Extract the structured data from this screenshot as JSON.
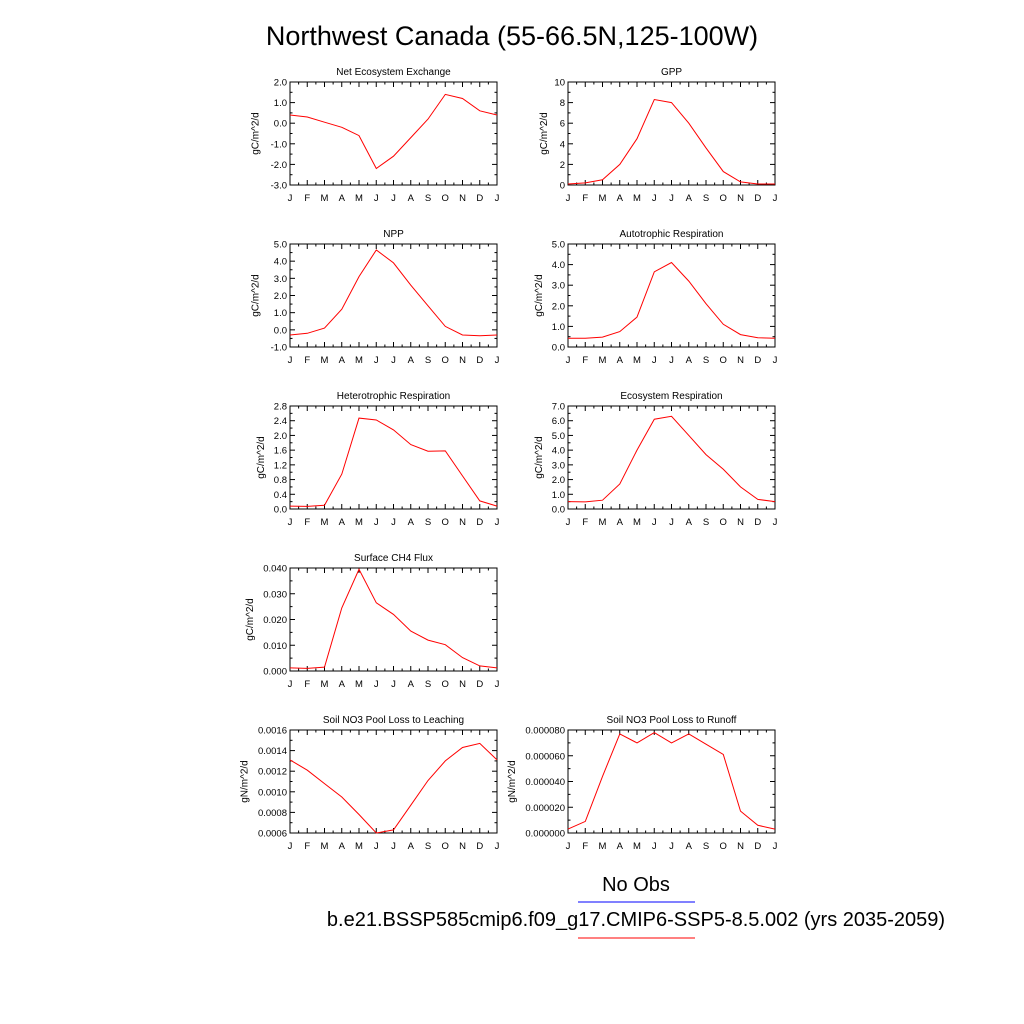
{
  "figure": {
    "title": "Northwest Canada (55-66.5N,125-100W)",
    "legend": {
      "entries": [
        {
          "label": "No Obs",
          "color": "#0000ff"
        },
        {
          "label": "b.e21.BSSP585cmip6.f09_g17.CMIP6-SSP5-8.5.002 (yrs 2035-2059)",
          "color": "#ff0000"
        }
      ]
    }
  },
  "chart_data": [
    {
      "type": "line",
      "title": "Net Ecosystem Exchange",
      "ylabel": "gC/m^2/d",
      "x": [
        "J",
        "F",
        "M",
        "A",
        "M",
        "J",
        "J",
        "A",
        "S",
        "O",
        "N",
        "D",
        "J"
      ],
      "ylim": [
        -3.0,
        2.0
      ],
      "yticks": [
        "-3.0",
        "-2.0",
        "-1.0",
        "0.0",
        "1.0",
        "2.0"
      ],
      "series": [
        {
          "color": "#ff0000",
          "values": [
            0.4,
            0.3,
            0.05,
            -0.2,
            -0.6,
            -2.2,
            -1.6,
            -0.7,
            0.2,
            1.4,
            1.2,
            0.6,
            0.4
          ]
        }
      ]
    },
    {
      "type": "line",
      "title": "GPP",
      "ylabel": "gC/m^2/d",
      "x": [
        "J",
        "F",
        "M",
        "A",
        "M",
        "J",
        "J",
        "A",
        "S",
        "O",
        "N",
        "D",
        "J"
      ],
      "ylim": [
        0,
        10
      ],
      "yticks": [
        "0",
        "2",
        "4",
        "6",
        "8",
        "10"
      ],
      "series": [
        {
          "color": "#ff0000",
          "values": [
            0.1,
            0.2,
            0.5,
            2.0,
            4.5,
            8.3,
            8.0,
            6.0,
            3.6,
            1.3,
            0.3,
            0.1,
            0.1
          ]
        }
      ]
    },
    {
      "type": "line",
      "title": "NPP",
      "ylabel": "gC/m^2/d",
      "x": [
        "J",
        "F",
        "M",
        "A",
        "M",
        "J",
        "J",
        "A",
        "S",
        "O",
        "N",
        "D",
        "J"
      ],
      "ylim": [
        -1.0,
        5.0
      ],
      "yticks": [
        "-1.0",
        "0.0",
        "1.0",
        "2.0",
        "3.0",
        "4.0",
        "5.0"
      ],
      "series": [
        {
          "color": "#ff0000",
          "values": [
            -0.3,
            -0.2,
            0.1,
            1.2,
            3.1,
            4.65,
            3.9,
            2.6,
            1.4,
            0.2,
            -0.3,
            -0.35,
            -0.3
          ]
        }
      ]
    },
    {
      "type": "line",
      "title": "Autotrophic Respiration",
      "ylabel": "gC/m^2/d",
      "x": [
        "J",
        "F",
        "M",
        "A",
        "M",
        "J",
        "J",
        "A",
        "S",
        "O",
        "N",
        "D",
        "J"
      ],
      "ylim": [
        0,
        5.0
      ],
      "yticks": [
        "0.0",
        "1.0",
        "2.0",
        "3.0",
        "4.0",
        "5.0"
      ],
      "series": [
        {
          "color": "#ff0000",
          "values": [
            0.42,
            0.42,
            0.48,
            0.75,
            1.45,
            3.65,
            4.1,
            3.2,
            2.1,
            1.1,
            0.6,
            0.45,
            0.42
          ]
        }
      ]
    },
    {
      "type": "line",
      "title": "Heterotrophic Respiration",
      "ylabel": "gC/m^2/d",
      "x": [
        "J",
        "F",
        "M",
        "A",
        "M",
        "J",
        "J",
        "A",
        "S",
        "O",
        "N",
        "D",
        "J"
      ],
      "ylim": [
        0,
        2.8
      ],
      "yticks": [
        "0.0",
        "0.4",
        "0.8",
        "1.2",
        "1.6",
        "2.0",
        "2.4",
        "2.8"
      ],
      "series": [
        {
          "color": "#ff0000",
          "values": [
            0.08,
            0.07,
            0.1,
            0.95,
            2.47,
            2.42,
            2.15,
            1.75,
            1.57,
            1.58,
            0.9,
            0.22,
            0.08
          ]
        }
      ]
    },
    {
      "type": "line",
      "title": "Ecosystem Respiration",
      "ylabel": "gC/m^2/d",
      "x": [
        "J",
        "F",
        "M",
        "A",
        "M",
        "J",
        "J",
        "A",
        "S",
        "O",
        "N",
        "D",
        "J"
      ],
      "ylim": [
        0,
        7.0
      ],
      "yticks": [
        "0.0",
        "1.0",
        "2.0",
        "3.0",
        "4.0",
        "5.0",
        "6.0",
        "7.0"
      ],
      "series": [
        {
          "color": "#ff0000",
          "values": [
            0.5,
            0.48,
            0.6,
            1.7,
            4.0,
            6.1,
            6.3,
            5.0,
            3.7,
            2.7,
            1.5,
            0.65,
            0.5
          ]
        }
      ]
    },
    {
      "type": "line",
      "title": "Surface CH4 Flux",
      "ylabel": "gC/m^2/d",
      "x": [
        "J",
        "F",
        "M",
        "A",
        "M",
        "J",
        "J",
        "A",
        "S",
        "O",
        "N",
        "D",
        "J"
      ],
      "ylim": [
        0,
        0.04
      ],
      "yticks": [
        "0.000",
        "0.010",
        "0.020",
        "0.030",
        "0.040"
      ],
      "series": [
        {
          "color": "#ff0000",
          "values": [
            0.0012,
            0.001,
            0.0015,
            0.0245,
            0.0395,
            0.0265,
            0.022,
            0.0155,
            0.012,
            0.0102,
            0.0052,
            0.002,
            0.0012
          ]
        }
      ]
    },
    {
      "type": "line",
      "title": "Soil NO3 Pool Loss to Leaching",
      "ylabel": "gN/m^2/d",
      "x": [
        "J",
        "F",
        "M",
        "A",
        "M",
        "J",
        "J",
        "A",
        "S",
        "O",
        "N",
        "D",
        "J"
      ],
      "ylim": [
        0.0006,
        0.0016
      ],
      "yticks": [
        "0.0006",
        "0.0008",
        "0.0010",
        "0.0012",
        "0.0014",
        "0.0016"
      ],
      "series": [
        {
          "color": "#ff0000",
          "values": [
            0.00131,
            0.00121,
            0.00108,
            0.00095,
            0.00078,
            0.0006,
            0.00063,
            0.00087,
            0.00111,
            0.0013,
            0.00143,
            0.00147,
            0.00131
          ]
        }
      ]
    },
    {
      "type": "line",
      "title": "Soil NO3 Pool Loss to Runoff",
      "ylabel": "gN/m^2/d",
      "x": [
        "J",
        "F",
        "M",
        "A",
        "M",
        "J",
        "J",
        "A",
        "S",
        "O",
        "N",
        "D",
        "J"
      ],
      "ylim": [
        0,
        8e-05
      ],
      "yticks": [
        "0.000000",
        "0.000020",
        "0.000040",
        "0.000060",
        "0.000080"
      ],
      "series": [
        {
          "color": "#ff0000",
          "values": [
            3e-06,
            9e-06,
            4.4e-05,
            7.7e-05,
            7e-05,
            7.8e-05,
            7e-05,
            7.7e-05,
            6.9e-05,
            6.1e-05,
            1.7e-05,
            6e-06,
            3e-06
          ]
        }
      ]
    }
  ]
}
